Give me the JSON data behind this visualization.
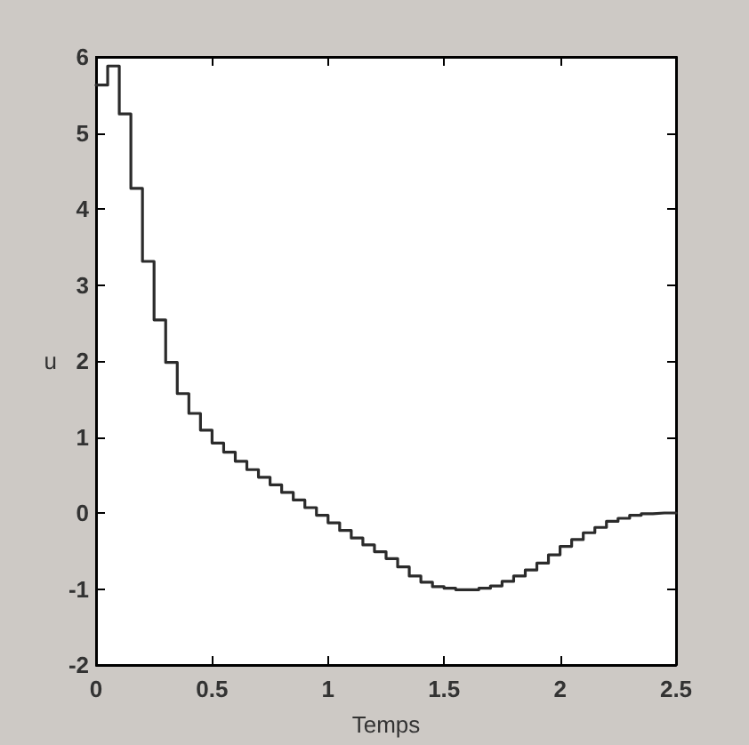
{
  "chart_data": {
    "type": "step",
    "xlabel": "Temps",
    "ylabel": "u",
    "color": "#2b2b2b",
    "line_style": "solid",
    "x": [
      0,
      0.05,
      0.1,
      0.15,
      0.2,
      0.25,
      0.3,
      0.35,
      0.4,
      0.45,
      0.5,
      0.55,
      0.6,
      0.65,
      0.7,
      0.75,
      0.8,
      0.85,
      0.9,
      0.95,
      1,
      1.05,
      1.1,
      1.15,
      1.2,
      1.25,
      1.3,
      1.35,
      1.4,
      1.45,
      1.5,
      1.55,
      1.6,
      1.65,
      1.7,
      1.75,
      1.8,
      1.85,
      1.9,
      1.95,
      2,
      2.05,
      2.1,
      2.15,
      2.2,
      2.25,
      2.3,
      2.35,
      2.4,
      2.45,
      2.5
    ],
    "values": [
      5.63,
      5.88,
      5.25,
      4.27,
      3.31,
      2.54,
      1.98,
      1.57,
      1.31,
      1.09,
      0.92,
      0.8,
      0.68,
      0.57,
      0.47,
      0.37,
      0.27,
      0.17,
      0.07,
      -0.03,
      -0.13,
      -0.23,
      -0.33,
      -0.42,
      -0.51,
      -0.6,
      -0.71,
      -0.83,
      -0.91,
      -0.97,
      -0.99,
      -1.01,
      -1.01,
      -0.99,
      -0.96,
      -0.9,
      -0.83,
      -0.75,
      -0.66,
      -0.55,
      -0.44,
      -0.35,
      -0.26,
      -0.19,
      -0.11,
      -0.07,
      -0.03,
      -0.01,
      0,
      0,
      0
    ],
    "xlim": [
      0,
      2.5
    ],
    "xticks": [
      0,
      0.5,
      1,
      1.5,
      2,
      2.5
    ],
    "ylim": [
      -2,
      6
    ],
    "yticks": [
      -2,
      -1,
      0,
      1,
      2,
      3,
      4,
      5,
      6
    ]
  }
}
